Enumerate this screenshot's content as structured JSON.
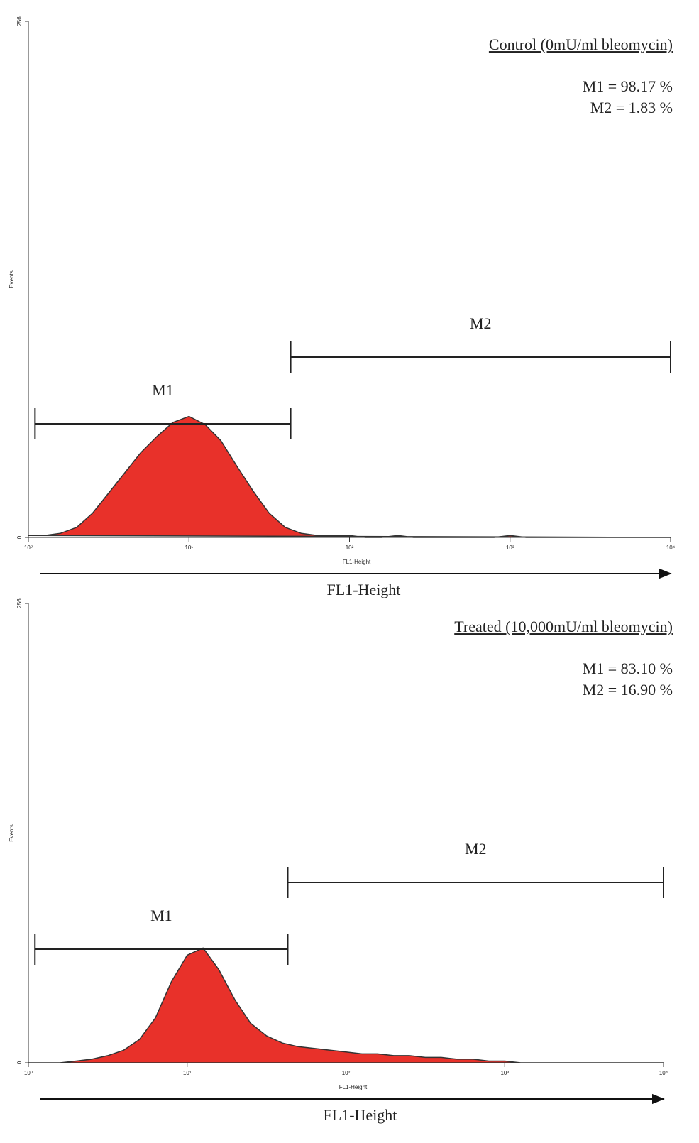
{
  "chart_data": [
    {
      "type": "area",
      "title": "Control (0mU/ml bleomycin)",
      "x_label": "FL1-Height",
      "axis_caption": "FL1-Height",
      "y_label": "Events",
      "stats": [
        "M1 = 98.17 %",
        "M2 = 1.83 %"
      ],
      "markers": [
        {
          "name": "M1",
          "range": [
            1.1,
            43
          ]
        },
        {
          "name": "M2",
          "range": [
            43,
            10000
          ]
        }
      ],
      "log_x": true,
      "color": "#e8312a",
      "line_color": "#333333",
      "xlim": [
        1,
        10000
      ],
      "xticks": [
        {
          "value": 1,
          "label": "10⁰"
        },
        {
          "value": 10,
          "label": "10¹"
        },
        {
          "value": 100,
          "label": "10²"
        },
        {
          "value": 1000,
          "label": "10³"
        },
        {
          "value": 10000,
          "label": "10⁴"
        }
      ],
      "ylim": [
        0,
        256
      ],
      "yticks": [
        0,
        256
      ],
      "x": [
        1,
        1.26,
        1.58,
        2,
        2.51,
        3.16,
        3.98,
        5.01,
        6.31,
        7.94,
        10,
        12.6,
        15.8,
        20,
        25.1,
        31.6,
        39.8,
        50.1,
        63.1,
        79.4,
        100,
        126,
        158,
        200,
        251,
        316,
        398,
        501,
        631,
        794,
        1000,
        1260,
        1580,
        2000,
        2510,
        3160,
        3980,
        5010,
        6310,
        7940,
        10000
      ],
      "values": [
        1,
        1,
        2,
        5,
        12,
        22,
        32,
        42,
        50,
        57,
        60,
        56,
        48,
        35,
        23,
        12,
        5,
        2,
        1,
        1,
        1,
        0,
        0,
        1,
        0,
        0,
        0,
        0,
        0,
        0,
        1,
        0,
        0,
        0,
        0,
        0,
        0,
        0,
        0,
        0,
        0
      ]
    },
    {
      "type": "area",
      "title": "Treated (10,000mU/ml bleomycin)",
      "x_label": "FL1-Height",
      "axis_caption": "FL1-Height",
      "y_label": "Events",
      "stats": [
        "M1 = 83.10 %",
        "M2 = 16.90 %"
      ],
      "markers": [
        {
          "name": "M1",
          "range": [
            1.1,
            43
          ]
        },
        {
          "name": "M2",
          "range": [
            43,
            10000
          ]
        }
      ],
      "log_x": true,
      "color": "#e8312a",
      "line_color": "#333333",
      "xlim": [
        1,
        10000
      ],
      "xticks": [
        {
          "value": 1,
          "label": "10⁰"
        },
        {
          "value": 10,
          "label": "10¹"
        },
        {
          "value": 100,
          "label": "10²"
        },
        {
          "value": 1000,
          "label": "10³"
        },
        {
          "value": 10000,
          "label": "10⁴"
        }
      ],
      "ylim": [
        0,
        256
      ],
      "yticks": [
        0,
        256
      ],
      "x": [
        1,
        1.26,
        1.58,
        2,
        2.51,
        3.16,
        3.98,
        5.01,
        6.31,
        7.94,
        10,
        12.6,
        15.8,
        20,
        25.1,
        31.6,
        39.8,
        50.1,
        63.1,
        79.4,
        100,
        126,
        158,
        200,
        251,
        316,
        398,
        501,
        631,
        794,
        1000,
        1260,
        1580,
        2000,
        2510,
        3160,
        3980,
        5010,
        6310,
        7940,
        10000
      ],
      "values": [
        0,
        0,
        0,
        1,
        2,
        4,
        7,
        13,
        25,
        45,
        60,
        64,
        52,
        35,
        22,
        15,
        11,
        9,
        8,
        7,
        6,
        5,
        5,
        4,
        4,
        3,
        3,
        2,
        2,
        1,
        1,
        0,
        0,
        0,
        0,
        0,
        0,
        0,
        0,
        0,
        0
      ]
    }
  ]
}
